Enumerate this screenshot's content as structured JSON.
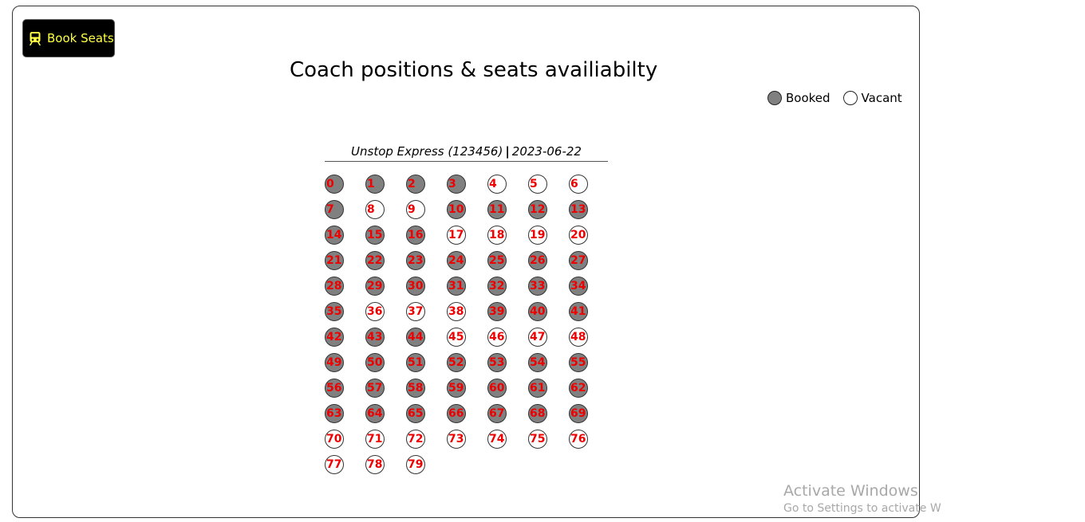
{
  "header": {
    "book_button_label": "Book Seats",
    "book_button_icon": "train-icon",
    "title": "Coach positions & seats availiabilty"
  },
  "legend": {
    "booked_label": "Booked",
    "vacant_label": "Vacant",
    "booked_color": "#808080",
    "vacant_color": "#ffffff"
  },
  "coach": {
    "train": "Unstop Express (123456)",
    "separator": "|",
    "date": "2023-06-22"
  },
  "seat_text_color": "#ee0000",
  "seats": [
    {
      "number": "0",
      "status": "booked"
    },
    {
      "number": "1",
      "status": "booked"
    },
    {
      "number": "2",
      "status": "booked"
    },
    {
      "number": "3",
      "status": "booked"
    },
    {
      "number": "4",
      "status": "vacant"
    },
    {
      "number": "5",
      "status": "vacant"
    },
    {
      "number": "6",
      "status": "vacant"
    },
    {
      "number": "7",
      "status": "booked"
    },
    {
      "number": "8",
      "status": "vacant"
    },
    {
      "number": "9",
      "status": "vacant"
    },
    {
      "number": "10",
      "status": "booked"
    },
    {
      "number": "11",
      "status": "booked"
    },
    {
      "number": "12",
      "status": "booked"
    },
    {
      "number": "13",
      "status": "booked"
    },
    {
      "number": "14",
      "status": "booked"
    },
    {
      "number": "15",
      "status": "booked"
    },
    {
      "number": "16",
      "status": "booked"
    },
    {
      "number": "17",
      "status": "vacant"
    },
    {
      "number": "18",
      "status": "vacant"
    },
    {
      "number": "19",
      "status": "vacant"
    },
    {
      "number": "20",
      "status": "vacant"
    },
    {
      "number": "21",
      "status": "booked"
    },
    {
      "number": "22",
      "status": "booked"
    },
    {
      "number": "23",
      "status": "booked"
    },
    {
      "number": "24",
      "status": "booked"
    },
    {
      "number": "25",
      "status": "booked"
    },
    {
      "number": "26",
      "status": "booked"
    },
    {
      "number": "27",
      "status": "booked"
    },
    {
      "number": "28",
      "status": "booked"
    },
    {
      "number": "29",
      "status": "booked"
    },
    {
      "number": "30",
      "status": "booked"
    },
    {
      "number": "31",
      "status": "booked"
    },
    {
      "number": "32",
      "status": "booked"
    },
    {
      "number": "33",
      "status": "booked"
    },
    {
      "number": "34",
      "status": "booked"
    },
    {
      "number": "35",
      "status": "booked"
    },
    {
      "number": "36",
      "status": "vacant"
    },
    {
      "number": "37",
      "status": "vacant"
    },
    {
      "number": "38",
      "status": "vacant"
    },
    {
      "number": "39",
      "status": "booked"
    },
    {
      "number": "40",
      "status": "booked"
    },
    {
      "number": "41",
      "status": "booked"
    },
    {
      "number": "42",
      "status": "booked"
    },
    {
      "number": "43",
      "status": "booked"
    },
    {
      "number": "44",
      "status": "booked"
    },
    {
      "number": "45",
      "status": "vacant"
    },
    {
      "number": "46",
      "status": "vacant"
    },
    {
      "number": "47",
      "status": "vacant"
    },
    {
      "number": "48",
      "status": "vacant"
    },
    {
      "number": "49",
      "status": "booked"
    },
    {
      "number": "50",
      "status": "booked"
    },
    {
      "number": "51",
      "status": "booked"
    },
    {
      "number": "52",
      "status": "booked"
    },
    {
      "number": "53",
      "status": "booked"
    },
    {
      "number": "54",
      "status": "booked"
    },
    {
      "number": "55",
      "status": "booked"
    },
    {
      "number": "56",
      "status": "booked"
    },
    {
      "number": "57",
      "status": "booked"
    },
    {
      "number": "58",
      "status": "booked"
    },
    {
      "number": "59",
      "status": "booked"
    },
    {
      "number": "60",
      "status": "booked"
    },
    {
      "number": "61",
      "status": "booked"
    },
    {
      "number": "62",
      "status": "booked"
    },
    {
      "number": "63",
      "status": "booked"
    },
    {
      "number": "64",
      "status": "booked"
    },
    {
      "number": "65",
      "status": "booked"
    },
    {
      "number": "66",
      "status": "booked"
    },
    {
      "number": "67",
      "status": "booked"
    },
    {
      "number": "68",
      "status": "booked"
    },
    {
      "number": "69",
      "status": "booked"
    },
    {
      "number": "70",
      "status": "vacant"
    },
    {
      "number": "71",
      "status": "vacant"
    },
    {
      "number": "72",
      "status": "vacant"
    },
    {
      "number": "73",
      "status": "vacant"
    },
    {
      "number": "74",
      "status": "vacant"
    },
    {
      "number": "75",
      "status": "vacant"
    },
    {
      "number": "76",
      "status": "vacant"
    },
    {
      "number": "77",
      "status": "vacant"
    },
    {
      "number": "78",
      "status": "vacant"
    },
    {
      "number": "79",
      "status": "vacant"
    }
  ],
  "watermark": {
    "line1": "Activate Windows",
    "line2": "Go to Settings to activate W"
  }
}
